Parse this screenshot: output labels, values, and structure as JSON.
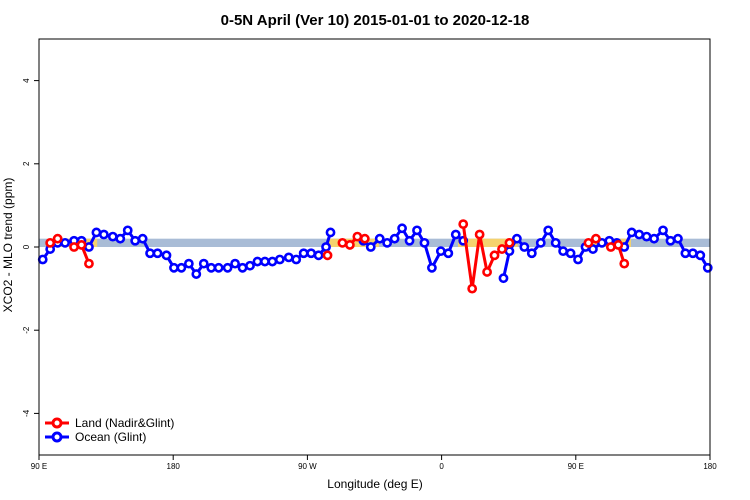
{
  "chart_data": {
    "type": "line",
    "title": "0-5N April (Ver 10)   2015-01-01 to 2020-12-18",
    "xlabel": "Longitude (deg E)",
    "ylabel": "XCO2 - MLO trend (ppm)",
    "x_ticks": [
      {
        "pos": 90,
        "label": "90 E"
      },
      {
        "pos": 180,
        "label": "180"
      },
      {
        "pos": 270,
        "label": "90 W"
      },
      {
        "pos": 360,
        "label": "0"
      },
      {
        "pos": 450,
        "label": "90 E"
      },
      {
        "pos": 540,
        "label": "180"
      }
    ],
    "y_ticks": [
      -4,
      -2,
      0,
      2,
      4
    ],
    "xlim": [
      90,
      540
    ],
    "ylim": [
      -5,
      5
    ],
    "grid": false,
    "legend_position": "bottom-left",
    "band": {
      "ymin": 0,
      "ymax": 0.2
    },
    "land_spans": [
      [
        97,
        129
      ],
      [
        283,
        318
      ],
      [
        371,
        411
      ],
      [
        461,
        487
      ]
    ],
    "colors": {
      "ocean": "#0000ff",
      "land": "#ff0000",
      "band_ocean": "#a9bcd6",
      "band_land": "#f5d26e"
    },
    "series": [
      {
        "name": "Land (Nadir&Glint)",
        "color": "#ff0000",
        "segments": [
          [
            [
              97.5,
              0.1
            ],
            [
              102.5,
              0.2
            ]
          ],
          [
            [
              113.5,
              0.0
            ],
            [
              118.5,
              0.05
            ],
            [
              123.5,
              -0.4
            ]
          ],
          [
            [
              283.5,
              -0.2
            ]
          ],
          [
            [
              293.5,
              0.1
            ],
            [
              298.5,
              0.05
            ],
            [
              303.5,
              0.25
            ],
            [
              308.5,
              0.2
            ]
          ],
          [
            [
              374.5,
              0.55
            ],
            [
              380.5,
              -1.0
            ],
            [
              385.5,
              0.3
            ],
            [
              390.5,
              -0.6
            ],
            [
              395.5,
              -0.2
            ],
            [
              400.5,
              -0.05
            ],
            [
              405.5,
              0.1
            ]
          ],
          [
            [
              458.5,
              0.1
            ],
            [
              463.5,
              0.2
            ]
          ],
          [
            [
              473.5,
              0.0
            ],
            [
              478.5,
              0.05
            ],
            [
              482.5,
              -0.4
            ]
          ]
        ]
      },
      {
        "name": "Ocean (Glint)",
        "color": "#0000ff",
        "segments": [
          [
            [
              92.5,
              -0.3
            ],
            [
              97.5,
              -0.05
            ],
            [
              102.5,
              0.1
            ],
            [
              107.5,
              0.1
            ],
            [
              113.5,
              0.15
            ],
            [
              118.5,
              0.15
            ],
            [
              123.5,
              0.0
            ],
            [
              128.5,
              0.35
            ],
            [
              133.5,
              0.3
            ],
            [
              139.5,
              0.25
            ],
            [
              144.5,
              0.2
            ],
            [
              149.5,
              0.4
            ],
            [
              154.5,
              0.15
            ],
            [
              159.5,
              0.2
            ],
            [
              164.5,
              -0.15
            ],
            [
              169.5,
              -0.15
            ],
            [
              175.5,
              -0.2
            ],
            [
              180.5,
              -0.5
            ],
            [
              185.5,
              -0.5
            ],
            [
              190.5,
              -0.4
            ],
            [
              195.5,
              -0.65
            ],
            [
              200.5,
              -0.4
            ],
            [
              205.5,
              -0.5
            ],
            [
              210.5,
              -0.5
            ],
            [
              216.5,
              -0.5
            ],
            [
              221.5,
              -0.4
            ],
            [
              226.5,
              -0.5
            ],
            [
              231.5,
              -0.45
            ],
            [
              236.5,
              -0.35
            ],
            [
              241.5,
              -0.35
            ],
            [
              246.5,
              -0.35
            ],
            [
              251.5,
              -0.3
            ],
            [
              257.5,
              -0.25
            ],
            [
              262.5,
              -0.3
            ],
            [
              267.5,
              -0.15
            ],
            [
              272.5,
              -0.15
            ],
            [
              277.5,
              -0.2
            ],
            [
              282.5,
              0.0
            ],
            [
              285.5,
              0.35
            ]
          ],
          [
            [
              307.5,
              0.15
            ],
            [
              312.5,
              0.0
            ],
            [
              318.5,
              0.2
            ],
            [
              323.5,
              0.1
            ],
            [
              328.5,
              0.2
            ],
            [
              333.5,
              0.45
            ],
            [
              338.5,
              0.15
            ],
            [
              343.5,
              0.4
            ],
            [
              348.5,
              0.1
            ],
            [
              353.5,
              -0.5
            ],
            [
              359.5,
              -0.1
            ],
            [
              364.5,
              -0.15
            ],
            [
              369.5,
              0.3
            ],
            [
              374.5,
              0.15
            ]
          ],
          [
            [
              401.5,
              -0.75
            ],
            [
              405.5,
              -0.1
            ],
            [
              410.5,
              0.2
            ],
            [
              415.5,
              0.0
            ],
            [
              420.5,
              -0.15
            ],
            [
              426.5,
              0.1
            ],
            [
              431.5,
              0.4
            ],
            [
              436.5,
              0.1
            ],
            [
              441.5,
              -0.1
            ],
            [
              446.5,
              -0.15
            ],
            [
              451.5,
              -0.3
            ],
            [
              456.5,
              0.0
            ],
            [
              461.5,
              -0.05
            ],
            [
              467.5,
              0.1
            ],
            [
              472.5,
              0.15
            ],
            [
              477.5,
              0.1
            ],
            [
              482.5,
              0.0
            ],
            [
              487.5,
              0.35
            ],
            [
              492.5,
              0.3
            ],
            [
              497.5,
              0.25
            ],
            [
              502.5,
              0.2
            ],
            [
              508.5,
              0.4
            ],
            [
              513.5,
              0.15
            ],
            [
              518.5,
              0.2
            ],
            [
              523.5,
              -0.15
            ],
            [
              528.5,
              -0.15
            ],
            [
              533.5,
              -0.2
            ],
            [
              538.5,
              -0.5
            ]
          ]
        ]
      }
    ]
  }
}
